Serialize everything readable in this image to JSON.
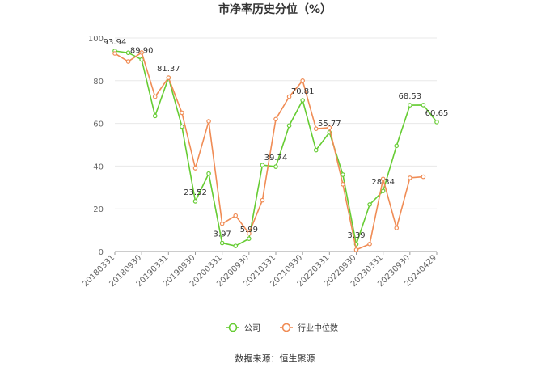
{
  "chart_data": {
    "type": "line",
    "title": "市净率历史分位（%）",
    "xlabel": "",
    "ylabel": "",
    "ylim": [
      0,
      100
    ],
    "yticks": [
      0,
      20,
      40,
      60,
      80,
      100
    ],
    "grid": true,
    "legend_position": "bottom",
    "x_tick_labels": [
      "20180331",
      "20180930",
      "20190331",
      "20190930",
      "20200331",
      "20200930",
      "20210331",
      "20210930",
      "20220331",
      "20220930",
      "20230331",
      "20230930",
      "20240429"
    ],
    "series": [
      {
        "name": "公司",
        "color": "#66cc33",
        "values": [
          93.94,
          93.1,
          89.9,
          63.5,
          81.37,
          58.5,
          23.52,
          36.5,
          3.97,
          2.6,
          5.99,
          40.5,
          39.74,
          59.0,
          70.81,
          47.5,
          55.77,
          36.0,
          3.39,
          22.0,
          28.34,
          49.5,
          68.53,
          68.6,
          60.65
        ],
        "labels": [
          "93.94",
          "",
          "89.90",
          "",
          "81.37",
          "",
          "23.52",
          "",
          "3.97",
          "",
          "5.99",
          "",
          "39.74",
          "",
          "70.81",
          "",
          "55.77",
          "",
          "3.39",
          "",
          "28.34",
          "",
          "68.53",
          "",
          "60.65"
        ]
      },
      {
        "name": "行业中位数",
        "color": "#f08c55",
        "values": [
          92.8,
          89.0,
          93.2,
          72.5,
          81.4,
          65.0,
          39.0,
          61.0,
          13.0,
          16.8,
          8.5,
          24.0,
          62.0,
          72.5,
          80.0,
          57.5,
          58.0,
          31.5,
          0.8,
          3.5,
          34.0,
          11.0,
          34.5,
          35.0,
          null
        ]
      }
    ]
  },
  "source_text": "数据来源：恒生聚源"
}
